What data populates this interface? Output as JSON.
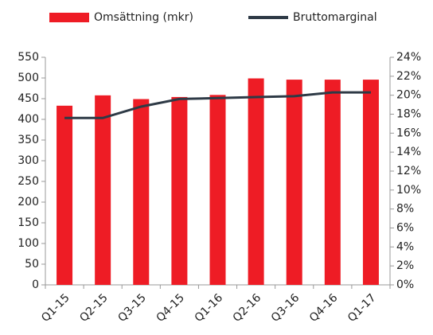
{
  "chart_data": {
    "type": "bar_line",
    "categories": [
      "Q1-15",
      "Q2-15",
      "Q3-15",
      "Q4-15",
      "Q1-16",
      "Q2-16",
      "Q3-16",
      "Q4-16",
      "Q1-17"
    ],
    "series": [
      {
        "name": "Omsättning (mkr)",
        "type": "bar",
        "color": "#ee1c25",
        "values": [
          433,
          458,
          449,
          454,
          459,
          499,
          496,
          496,
          496
        ]
      },
      {
        "name": "Bruttomarginal",
        "type": "line",
        "color": "#2e3a46",
        "axis": "y2",
        "values": [
          17.6,
          17.6,
          18.8,
          19.6,
          19.7,
          19.8,
          19.9,
          20.3,
          20.3
        ]
      }
    ],
    "ylim": [
      0,
      550
    ],
    "yticks": [
      0,
      50,
      100,
      150,
      200,
      250,
      300,
      350,
      400,
      450,
      500,
      550
    ],
    "y2lim": [
      0,
      24
    ],
    "y2ticks": [
      {
        "value": 0,
        "label": "0%"
      },
      {
        "value": 2,
        "label": "2%"
      },
      {
        "value": 4,
        "label": "4%"
      },
      {
        "value": 6,
        "label": "6%"
      },
      {
        "value": 8,
        "label": "8%"
      },
      {
        "value": 10,
        "label": "10%"
      },
      {
        "value": 12,
        "label": "12%"
      },
      {
        "value": 14,
        "label": "14%"
      },
      {
        "value": 16,
        "label": "16%"
      },
      {
        "value": 18,
        "label": "18%"
      },
      {
        "value": 20,
        "label": "20%"
      },
      {
        "value": 22,
        "label": "22%"
      },
      {
        "value": 24,
        "label": "24%"
      }
    ],
    "grid": false,
    "legend": "top"
  }
}
